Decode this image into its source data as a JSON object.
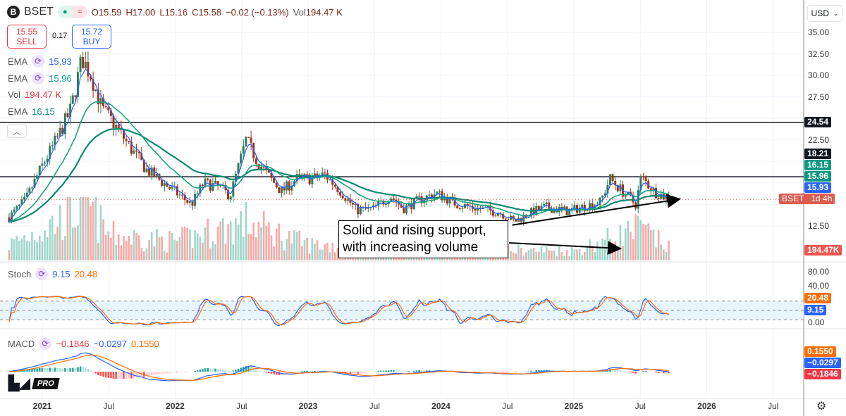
{
  "header": {
    "symbol": "BSET",
    "logo_letter": "B",
    "open": "O15.59",
    "high": "H17.00",
    "low": "L15.16",
    "close": "C15.58",
    "change": "−0.02 (−0.13%)",
    "vol_label": "Vol",
    "volume": "194.47 K"
  },
  "trade": {
    "sell_price": "15.55",
    "sell_label": "SELL",
    "spread": "0.17",
    "buy_price": "15.72",
    "buy_label": "BUY"
  },
  "legend": [
    {
      "name": "EMA",
      "value": "15.93",
      "color": "#2962ff"
    },
    {
      "name": "EMA",
      "value": "15.96",
      "color": "#089981"
    },
    {
      "name": "Vol",
      "value": "194.47 K",
      "color": "#f23645"
    },
    {
      "name": "EMA",
      "value": "16.15",
      "color": "#089981"
    }
  ],
  "currency": "USD",
  "annotation": {
    "line1": "Solid and rising support,",
    "line2": "with increasing volume"
  },
  "stoch": {
    "name": "Stoch",
    "k": "9.15",
    "d": "20.48"
  },
  "macd": {
    "name": "MACD",
    "hist": "−0.1846",
    "macd": "−0.0297",
    "signal": "0.1550"
  },
  "price_labels": [
    {
      "text": "24.54",
      "color": "#131722"
    },
    {
      "text": "18.21",
      "color": "#131722"
    },
    {
      "text": "16.15",
      "color": "#089981"
    },
    {
      "text": "15.96",
      "color": "#089981"
    },
    {
      "text": "15.93",
      "color": "#2962ff"
    },
    {
      "symbol": "BSET",
      "countdown": "1d 4h",
      "color": "#dd5a4f"
    },
    {
      "text": "194.47K",
      "color": "#f05350"
    }
  ],
  "stoch_labels": [
    {
      "text": "20.48",
      "color": "#ff6d00"
    },
    {
      "text": "9.15",
      "color": "#2962ff"
    }
  ],
  "macd_labels": [
    {
      "text": "0.1550",
      "color": "#ff6d00"
    },
    {
      "text": "−0.0297",
      "color": "#2962ff"
    },
    {
      "text": "−0.1846",
      "color": "#f23645"
    }
  ],
  "brand": "PRO",
  "chart_data": {
    "type": "candlestick",
    "interval": "weekly",
    "y_ticks": [
      "35.00",
      "32.50",
      "30.00",
      "27.50",
      "22.50",
      "12.50"
    ],
    "ylim": [
      10,
      36
    ],
    "stoch_ticks": [
      "80.00",
      "40.00",
      "0.00"
    ],
    "x_ticks": [
      "2021",
      "Jul",
      "2022",
      "Jul",
      "2023",
      "Jul",
      "2024",
      "Jul",
      "2025",
      "Jul",
      "2026",
      "Jul"
    ],
    "horizontal_lines": [
      24.54,
      18.21
    ],
    "trendline": [
      [
        "2024-07-15",
        12.6
      ],
      [
        "2025-10-15",
        15.6
      ]
    ],
    "close_path": [
      [
        "2020-10-01",
        13.5
      ],
      [
        "2020-11-15",
        15.5
      ],
      [
        "2021-01-01",
        19.5
      ],
      [
        "2021-02-15",
        23
      ],
      [
        "2021-03-20",
        26
      ],
      [
        "2021-04-20",
        32
      ],
      [
        "2021-05-15",
        30
      ],
      [
        "2021-06-15",
        26
      ],
      [
        "2021-07-15",
        24.5
      ],
      [
        "2021-09-01",
        21.5
      ],
      [
        "2021-10-15",
        19
      ],
      [
        "2021-12-15",
        17
      ],
      [
        "2022-02-15",
        15
      ],
      [
        "2022-03-20",
        17.5
      ],
      [
        "2022-05-01",
        17
      ],
      [
        "2022-06-01",
        16
      ],
      [
        "2022-07-15",
        22.5
      ],
      [
        "2022-08-15",
        20
      ],
      [
        "2022-09-20",
        18
      ],
      [
        "2022-10-20",
        16.5
      ],
      [
        "2022-12-01",
        18
      ],
      [
        "2023-01-15",
        18
      ],
      [
        "2023-02-15",
        18.5
      ],
      [
        "2023-04-01",
        16.5
      ],
      [
        "2023-05-15",
        14.3
      ],
      [
        "2023-07-01",
        14.5
      ],
      [
        "2023-08-15",
        16
      ],
      [
        "2023-09-20",
        14.5
      ],
      [
        "2023-11-01",
        15.5
      ],
      [
        "2023-12-20",
        16.3
      ],
      [
        "2024-02-15",
        15
      ],
      [
        "2024-04-15",
        14.5
      ],
      [
        "2024-06-15",
        14
      ],
      [
        "2024-07-20",
        13
      ],
      [
        "2024-09-01",
        14
      ],
      [
        "2024-10-15",
        14.7
      ],
      [
        "2024-12-15",
        14.2
      ],
      [
        "2025-02-01",
        14.8
      ],
      [
        "2025-03-15",
        15.3
      ],
      [
        "2025-04-10",
        18
      ],
      [
        "2025-05-15",
        16.5
      ],
      [
        "2025-06-20",
        15
      ],
      [
        "2025-07-05",
        18.2
      ],
      [
        "2025-08-10",
        16.5
      ],
      [
        "2025-09-20",
        15.6
      ]
    ],
    "volume_path_k": [
      [
        "2020-10-01",
        250
      ],
      [
        "2021-01-01",
        500
      ],
      [
        "2021-03-15",
        700
      ],
      [
        "2021-05-01",
        900
      ],
      [
        "2021-07-01",
        400
      ],
      [
        "2022-01-01",
        300
      ],
      [
        "2022-07-15",
        600
      ],
      [
        "2023-01-01",
        250
      ],
      [
        "2024-01-01",
        180
      ],
      [
        "2025-01-01",
        150
      ],
      [
        "2025-07-01",
        500
      ],
      [
        "2025-09-20",
        194.47
      ]
    ]
  }
}
